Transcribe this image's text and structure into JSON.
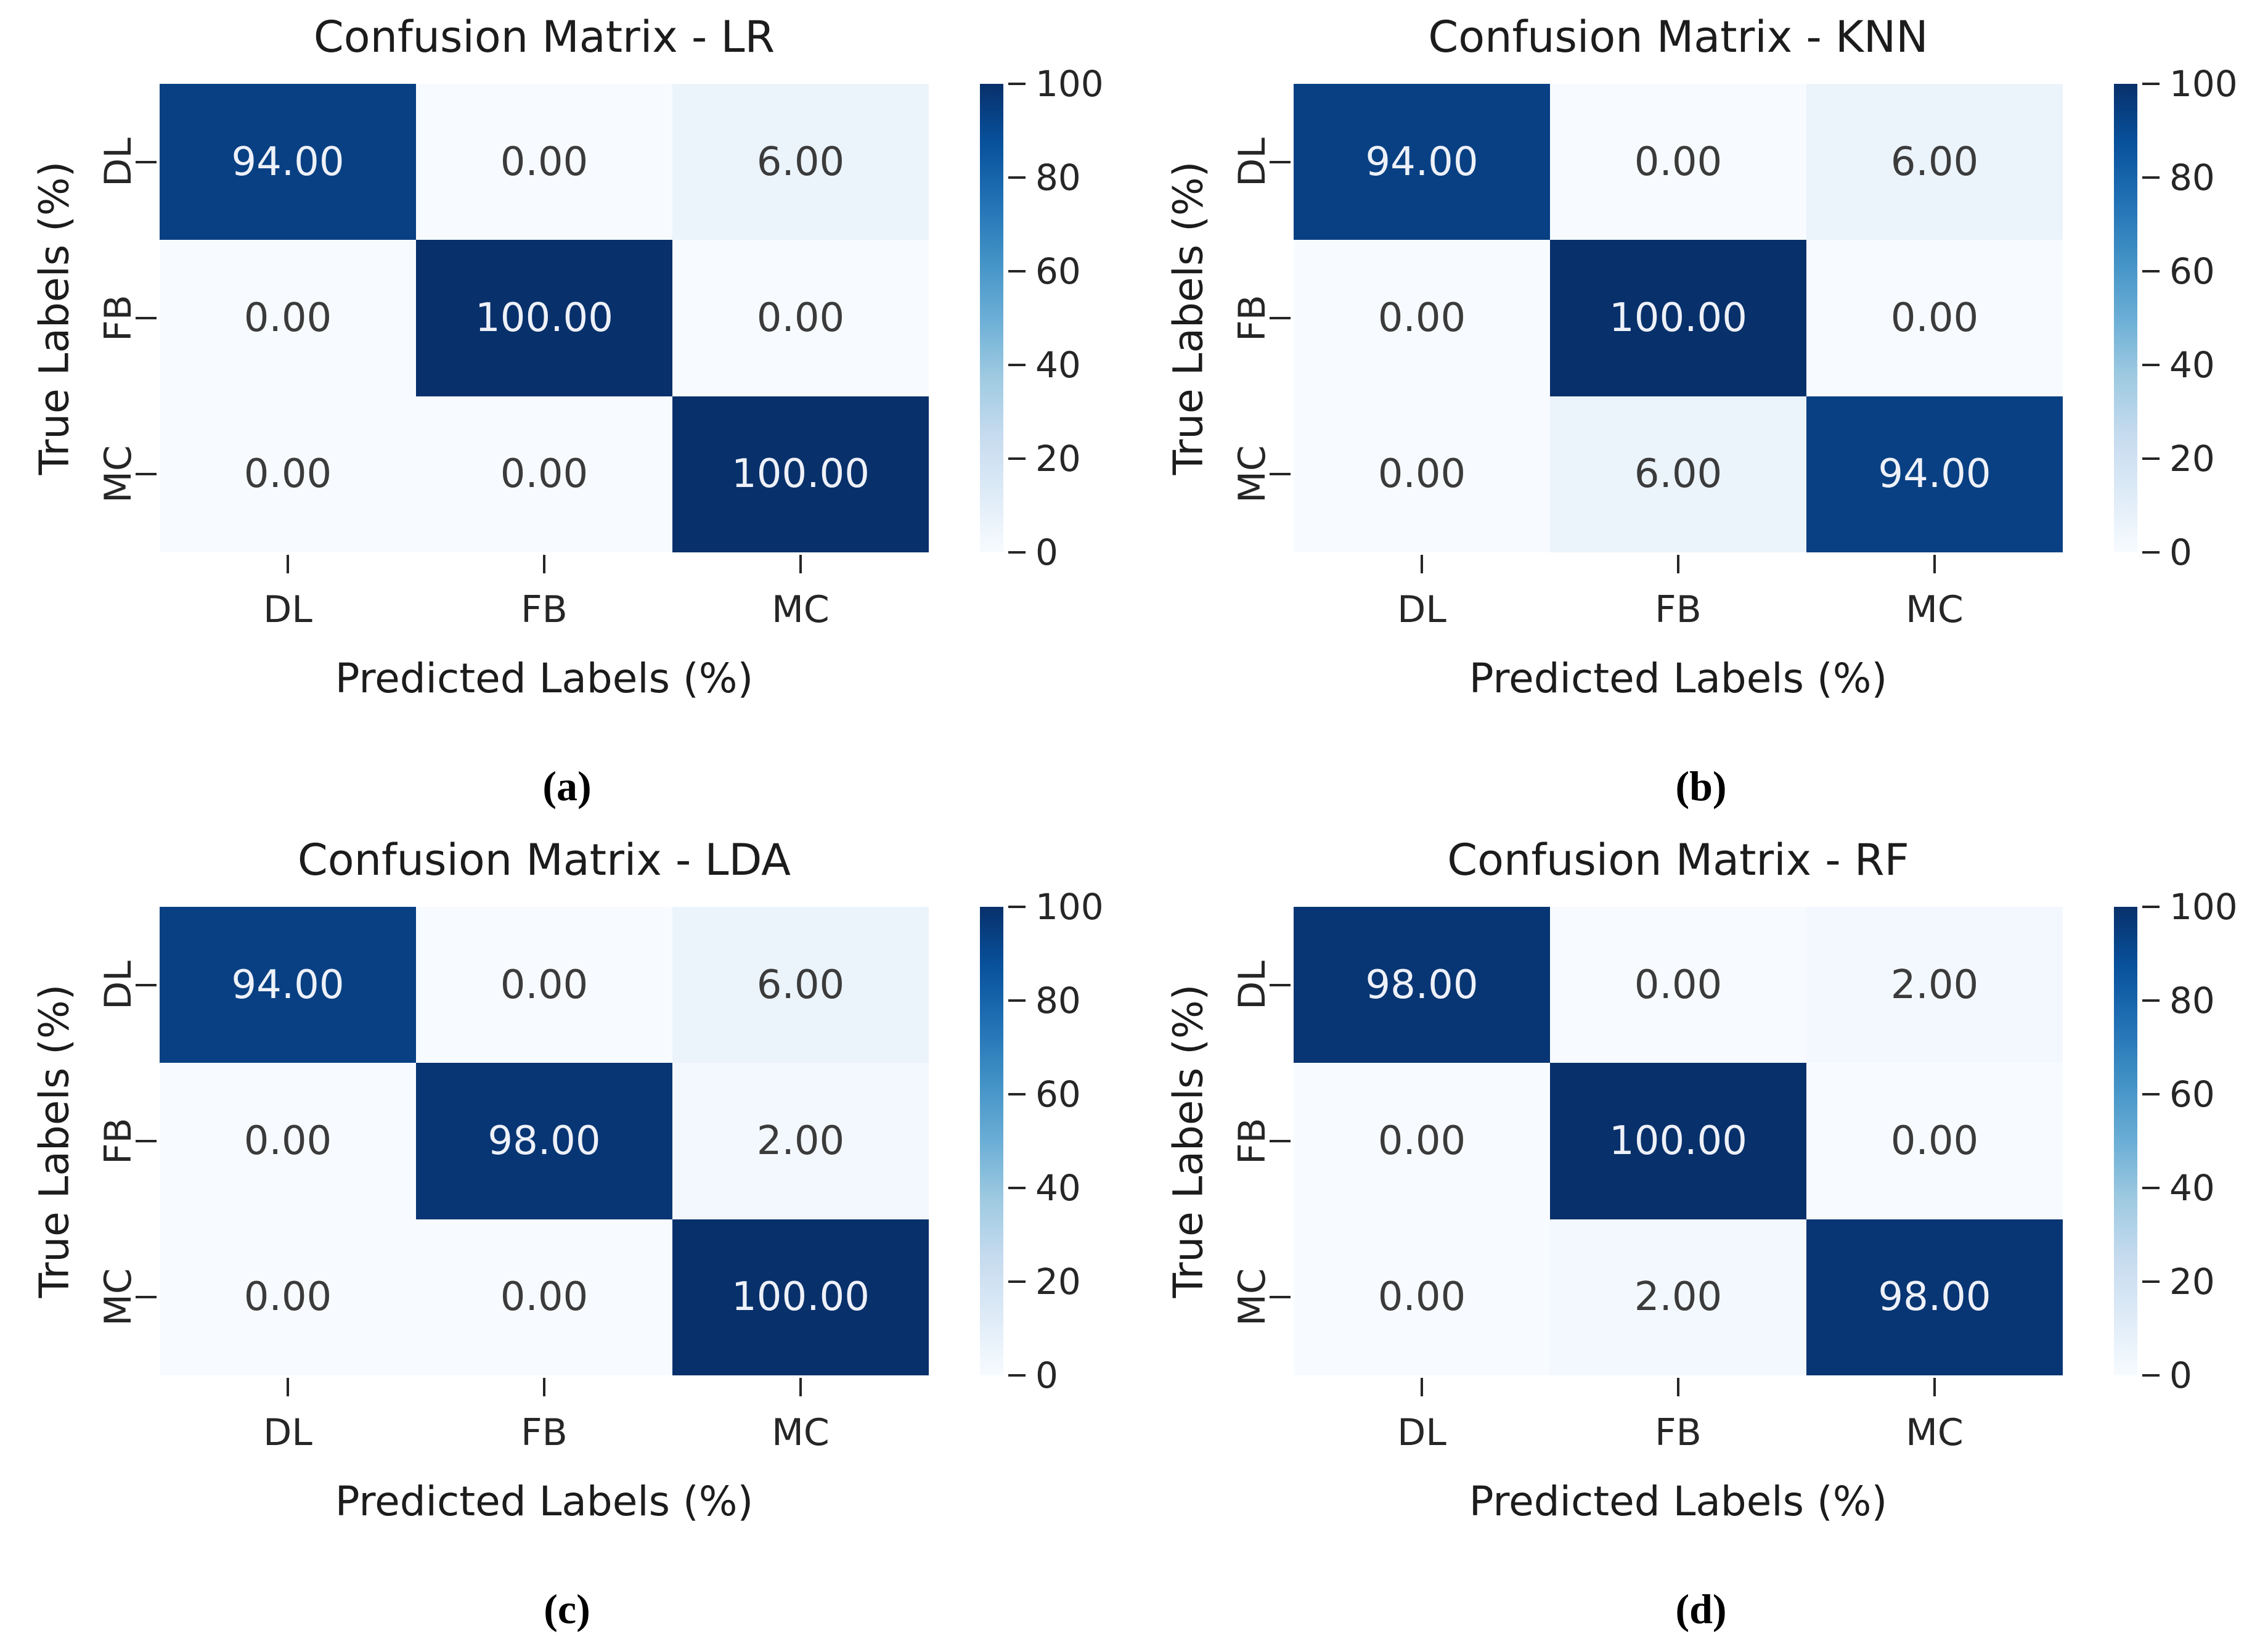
{
  "figure": {
    "background": "#ffffff",
    "text_color": "#262626",
    "title_color": "#1c1c1c",
    "annotation_light_text": "#eef1f8",
    "annotation_dark_text": "#3b3b3b",
    "tick_mark_color": "#262626",
    "colormap_name": "Blues",
    "colormap_stops": [
      "#f7fbff",
      "#deebf7",
      "#c6dbef",
      "#9ecae1",
      "#6baed6",
      "#4292c6",
      "#2171b5",
      "#08519c",
      "#08306b"
    ],
    "vmin": 0,
    "vmax": 100,
    "colorbar_tick_values": [
      0,
      20,
      40,
      60,
      80,
      100
    ],
    "colorbar_tick_labels": [
      "0",
      "20",
      "40",
      "60",
      "80",
      "100"
    ]
  },
  "chart_data": [
    {
      "type": "heatmap",
      "panel": "a",
      "title": "Confusion Matrix - LR",
      "caption": "(a)",
      "xlabel": "Predicted Labels (%)",
      "ylabel": "True Labels (%)",
      "x_categories": [
        "DL",
        "FB",
        "MC"
      ],
      "y_categories": [
        "DL",
        "FB",
        "MC"
      ],
      "values": [
        [
          94,
          0,
          6
        ],
        [
          0,
          100,
          0
        ],
        [
          0,
          0,
          100
        ]
      ],
      "cell_labels": [
        [
          "94.00",
          "0.00",
          "6.00"
        ],
        [
          "0.00",
          "100.00",
          "0.00"
        ],
        [
          "0.00",
          "0.00",
          "100.00"
        ]
      ],
      "colormap": "Blues",
      "vmin": 0,
      "vmax": 100
    },
    {
      "type": "heatmap",
      "panel": "b",
      "title": "Confusion Matrix - KNN",
      "caption": "(b)",
      "xlabel": "Predicted Labels (%)",
      "ylabel": "True Labels (%)",
      "x_categories": [
        "DL",
        "FB",
        "MC"
      ],
      "y_categories": [
        "DL",
        "FB",
        "MC"
      ],
      "values": [
        [
          94,
          0,
          6
        ],
        [
          0,
          100,
          0
        ],
        [
          0,
          6,
          94
        ]
      ],
      "cell_labels": [
        [
          "94.00",
          "0.00",
          "6.00"
        ],
        [
          "0.00",
          "100.00",
          "0.00"
        ],
        [
          "0.00",
          "6.00",
          "94.00"
        ]
      ],
      "colormap": "Blues",
      "vmin": 0,
      "vmax": 100
    },
    {
      "type": "heatmap",
      "panel": "c",
      "title": "Confusion Matrix - LDA",
      "caption": "(c)",
      "xlabel": "Predicted Labels (%)",
      "ylabel": "True Labels (%)",
      "x_categories": [
        "DL",
        "FB",
        "MC"
      ],
      "y_categories": [
        "DL",
        "FB",
        "MC"
      ],
      "values": [
        [
          94,
          0,
          6
        ],
        [
          0,
          98,
          2
        ],
        [
          0,
          0,
          100
        ]
      ],
      "cell_labels": [
        [
          "94.00",
          "0.00",
          "6.00"
        ],
        [
          "0.00",
          "98.00",
          "2.00"
        ],
        [
          "0.00",
          "0.00",
          "100.00"
        ]
      ],
      "colormap": "Blues",
      "vmin": 0,
      "vmax": 100
    },
    {
      "type": "heatmap",
      "panel": "d",
      "title": "Confusion Matrix - RF",
      "caption": "(d)",
      "xlabel": "Predicted Labels (%)",
      "ylabel": "True Labels (%)",
      "x_categories": [
        "DL",
        "FB",
        "MC"
      ],
      "y_categories": [
        "DL",
        "FB",
        "MC"
      ],
      "values": [
        [
          98,
          0,
          2
        ],
        [
          0,
          100,
          0
        ],
        [
          0,
          2,
          98
        ]
      ],
      "cell_labels": [
        [
          "98.00",
          "0.00",
          "2.00"
        ],
        [
          "0.00",
          "100.00",
          "0.00"
        ],
        [
          "0.00",
          "2.00",
          "98.00"
        ]
      ],
      "colormap": "Blues",
      "vmin": 0,
      "vmax": 100
    }
  ]
}
